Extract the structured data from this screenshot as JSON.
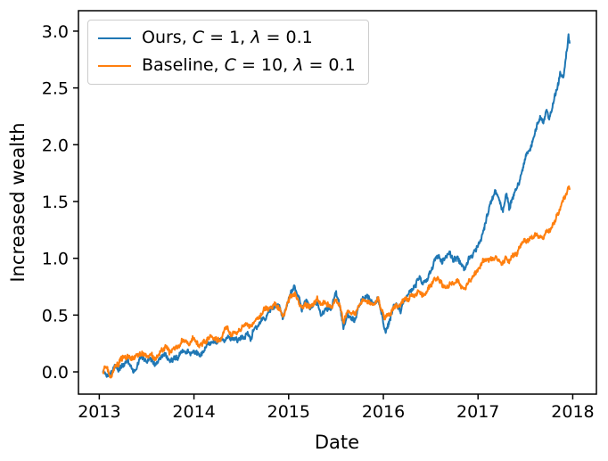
{
  "figure": {
    "background": "#ffffff",
    "text_color": "#000000",
    "spine_color": "#000000"
  },
  "chart_data": {
    "type": "line",
    "title": "",
    "xlabel": "Date",
    "ylabel": "Increased wealth",
    "grid": false,
    "xlim": [
      2012.78,
      2018.25
    ],
    "ylim": [
      -0.196,
      3.18
    ],
    "xticks": {
      "values": [
        2013,
        2014,
        2015,
        2016,
        2017,
        2018
      ],
      "labels": [
        "2013",
        "2014",
        "2015",
        "2016",
        "2017",
        "2018"
      ]
    },
    "yticks": {
      "values": [
        0.0,
        0.5,
        1.0,
        1.5,
        2.0,
        2.5,
        3.0
      ],
      "labels": [
        "0.0",
        "0.5",
        "1.0",
        "1.5",
        "2.0",
        "2.5",
        "3.0"
      ]
    },
    "legend": {
      "position": "upper left",
      "entries": [
        {
          "label": "Ours, C = 1, λ = 0.1",
          "color": "#1f77b4",
          "segments": [
            {
              "t": "Ours, "
            },
            {
              "t": "C",
              "i": true
            },
            {
              "t": " = 1, "
            },
            {
              "t": "λ",
              "i": true
            },
            {
              "t": " = 0.1"
            }
          ]
        },
        {
          "label": "Baseline, C = 10, λ = 0.1",
          "color": "#ff7f0e",
          "segments": [
            {
              "t": "Baseline, "
            },
            {
              "t": "C",
              "i": true
            },
            {
              "t": " = 10, "
            },
            {
              "t": "λ",
              "i": true
            },
            {
              "t": " = 0.1"
            }
          ]
        }
      ]
    },
    "noise": {
      "amplitude": 0.02,
      "seed": 42,
      "points_per_year": 260
    },
    "series": [
      {
        "name": "Ours, C = 1, λ = 0.1",
        "color": "#1f77b4",
        "points": [
          [
            2013.04,
            0.0
          ],
          [
            2013.08,
            -0.03
          ],
          [
            2013.12,
            0.02
          ],
          [
            2013.16,
            0.06
          ],
          [
            2013.2,
            0.02
          ],
          [
            2013.25,
            0.05
          ],
          [
            2013.3,
            0.11
          ],
          [
            2013.34,
            0.05
          ],
          [
            2013.38,
            0.01
          ],
          [
            2013.42,
            0.08
          ],
          [
            2013.46,
            0.12
          ],
          [
            2013.5,
            0.09
          ],
          [
            2013.54,
            0.16
          ],
          [
            2013.58,
            0.1
          ],
          [
            2013.62,
            0.08
          ],
          [
            2013.66,
            0.13
          ],
          [
            2013.7,
            0.15
          ],
          [
            2013.74,
            0.11
          ],
          [
            2013.78,
            0.14
          ],
          [
            2013.82,
            0.12
          ],
          [
            2013.86,
            0.16
          ],
          [
            2013.9,
            0.18
          ],
          [
            2013.95,
            0.16
          ],
          [
            2014.0,
            0.2
          ],
          [
            2014.05,
            0.13
          ],
          [
            2014.1,
            0.16
          ],
          [
            2014.15,
            0.22
          ],
          [
            2014.2,
            0.26
          ],
          [
            2014.25,
            0.21
          ],
          [
            2014.3,
            0.24
          ],
          [
            2014.35,
            0.31
          ],
          [
            2014.4,
            0.26
          ],
          [
            2014.45,
            0.28
          ],
          [
            2014.5,
            0.33
          ],
          [
            2014.55,
            0.36
          ],
          [
            2014.6,
            0.32
          ],
          [
            2014.65,
            0.4
          ],
          [
            2014.7,
            0.45
          ],
          [
            2014.75,
            0.49
          ],
          [
            2014.8,
            0.53
          ],
          [
            2014.85,
            0.58
          ],
          [
            2014.9,
            0.55
          ],
          [
            2014.94,
            0.45
          ],
          [
            2014.98,
            0.58
          ],
          [
            2015.02,
            0.68
          ],
          [
            2015.06,
            0.74
          ],
          [
            2015.1,
            0.62
          ],
          [
            2015.14,
            0.55
          ],
          [
            2015.18,
            0.62
          ],
          [
            2015.22,
            0.57
          ],
          [
            2015.26,
            0.6
          ],
          [
            2015.3,
            0.62
          ],
          [
            2015.34,
            0.52
          ],
          [
            2015.38,
            0.56
          ],
          [
            2015.42,
            0.54
          ],
          [
            2015.46,
            0.56
          ],
          [
            2015.5,
            0.71
          ],
          [
            2015.54,
            0.62
          ],
          [
            2015.58,
            0.42
          ],
          [
            2015.62,
            0.5
          ],
          [
            2015.66,
            0.46
          ],
          [
            2015.7,
            0.44
          ],
          [
            2015.74,
            0.58
          ],
          [
            2015.78,
            0.64
          ],
          [
            2015.82,
            0.67
          ],
          [
            2015.86,
            0.64
          ],
          [
            2015.9,
            0.61
          ],
          [
            2015.94,
            0.66
          ],
          [
            2015.98,
            0.52
          ],
          [
            2016.02,
            0.38
          ],
          [
            2016.06,
            0.46
          ],
          [
            2016.1,
            0.56
          ],
          [
            2016.14,
            0.6
          ],
          [
            2016.18,
            0.55
          ],
          [
            2016.22,
            0.62
          ],
          [
            2016.26,
            0.66
          ],
          [
            2016.3,
            0.71
          ],
          [
            2016.34,
            0.74
          ],
          [
            2016.38,
            0.82
          ],
          [
            2016.42,
            0.78
          ],
          [
            2016.46,
            0.84
          ],
          [
            2016.5,
            0.92
          ],
          [
            2016.54,
            1.0
          ],
          [
            2016.58,
            1.02
          ],
          [
            2016.62,
            0.99
          ],
          [
            2016.66,
            1.04
          ],
          [
            2016.7,
            1.06
          ],
          [
            2016.74,
            1.0
          ],
          [
            2016.78,
            1.03
          ],
          [
            2016.82,
            0.95
          ],
          [
            2016.86,
            0.86
          ],
          [
            2016.9,
            0.96
          ],
          [
            2016.94,
            1.04
          ],
          [
            2016.98,
            1.1
          ],
          [
            2017.02,
            1.18
          ],
          [
            2017.06,
            1.26
          ],
          [
            2017.1,
            1.36
          ],
          [
            2017.14,
            1.48
          ],
          [
            2017.18,
            1.58
          ],
          [
            2017.22,
            1.52
          ],
          [
            2017.26,
            1.44
          ],
          [
            2017.3,
            1.56
          ],
          [
            2017.33,
            1.4
          ],
          [
            2017.36,
            1.52
          ],
          [
            2017.4,
            1.64
          ],
          [
            2017.44,
            1.72
          ],
          [
            2017.48,
            1.82
          ],
          [
            2017.52,
            1.94
          ],
          [
            2017.56,
            2.02
          ],
          [
            2017.6,
            2.12
          ],
          [
            2017.63,
            2.22
          ],
          [
            2017.66,
            2.26
          ],
          [
            2017.69,
            2.18
          ],
          [
            2017.72,
            2.3
          ],
          [
            2017.75,
            2.22
          ],
          [
            2017.78,
            2.3
          ],
          [
            2017.81,
            2.42
          ],
          [
            2017.84,
            2.52
          ],
          [
            2017.87,
            2.64
          ],
          [
            2017.9,
            2.58
          ],
          [
            2017.93,
            2.78
          ],
          [
            2017.955,
            2.96
          ],
          [
            2017.97,
            2.86
          ]
        ]
      },
      {
        "name": "Baseline, C = 10, λ = 0.1",
        "color": "#ff7f0e",
        "points": [
          [
            2013.04,
            0.0
          ],
          [
            2013.08,
            0.03
          ],
          [
            2013.12,
            -0.02
          ],
          [
            2013.16,
            0.04
          ],
          [
            2013.2,
            0.07
          ],
          [
            2013.25,
            0.11
          ],
          [
            2013.3,
            0.14
          ],
          [
            2013.34,
            0.09
          ],
          [
            2013.38,
            0.11
          ],
          [
            2013.42,
            0.14
          ],
          [
            2013.46,
            0.16
          ],
          [
            2013.5,
            0.13
          ],
          [
            2013.54,
            0.17
          ],
          [
            2013.58,
            0.13
          ],
          [
            2013.62,
            0.15
          ],
          [
            2013.66,
            0.2
          ],
          [
            2013.7,
            0.24
          ],
          [
            2013.74,
            0.2
          ],
          [
            2013.78,
            0.22
          ],
          [
            2013.82,
            0.21
          ],
          [
            2013.86,
            0.24
          ],
          [
            2013.9,
            0.27
          ],
          [
            2013.95,
            0.25
          ],
          [
            2014.0,
            0.3
          ],
          [
            2014.05,
            0.22
          ],
          [
            2014.1,
            0.26
          ],
          [
            2014.15,
            0.3
          ],
          [
            2014.2,
            0.33
          ],
          [
            2014.25,
            0.29
          ],
          [
            2014.3,
            0.32
          ],
          [
            2014.35,
            0.38
          ],
          [
            2014.4,
            0.34
          ],
          [
            2014.45,
            0.36
          ],
          [
            2014.5,
            0.39
          ],
          [
            2014.55,
            0.42
          ],
          [
            2014.6,
            0.38
          ],
          [
            2014.65,
            0.45
          ],
          [
            2014.7,
            0.5
          ],
          [
            2014.75,
            0.52
          ],
          [
            2014.8,
            0.56
          ],
          [
            2014.85,
            0.61
          ],
          [
            2014.9,
            0.58
          ],
          [
            2014.94,
            0.48
          ],
          [
            2014.98,
            0.58
          ],
          [
            2015.02,
            0.64
          ],
          [
            2015.06,
            0.68
          ],
          [
            2015.1,
            0.62
          ],
          [
            2015.14,
            0.57
          ],
          [
            2015.18,
            0.61
          ],
          [
            2015.22,
            0.58
          ],
          [
            2015.26,
            0.6
          ],
          [
            2015.3,
            0.61
          ],
          [
            2015.34,
            0.55
          ],
          [
            2015.38,
            0.58
          ],
          [
            2015.42,
            0.56
          ],
          [
            2015.46,
            0.57
          ],
          [
            2015.5,
            0.63
          ],
          [
            2015.54,
            0.59
          ],
          [
            2015.58,
            0.49
          ],
          [
            2015.62,
            0.54
          ],
          [
            2015.66,
            0.51
          ],
          [
            2015.7,
            0.5
          ],
          [
            2015.74,
            0.58
          ],
          [
            2015.78,
            0.62
          ],
          [
            2015.82,
            0.64
          ],
          [
            2015.86,
            0.62
          ],
          [
            2015.9,
            0.6
          ],
          [
            2015.94,
            0.63
          ],
          [
            2015.98,
            0.54
          ],
          [
            2016.02,
            0.45
          ],
          [
            2016.06,
            0.5
          ],
          [
            2016.1,
            0.56
          ],
          [
            2016.14,
            0.59
          ],
          [
            2016.18,
            0.56
          ],
          [
            2016.22,
            0.61
          ],
          [
            2016.26,
            0.64
          ],
          [
            2016.3,
            0.67
          ],
          [
            2016.34,
            0.69
          ],
          [
            2016.38,
            0.73
          ],
          [
            2016.42,
            0.7
          ],
          [
            2016.46,
            0.73
          ],
          [
            2016.5,
            0.76
          ],
          [
            2016.54,
            0.78
          ],
          [
            2016.58,
            0.79
          ],
          [
            2016.62,
            0.77
          ],
          [
            2016.66,
            0.79
          ],
          [
            2016.7,
            0.81
          ],
          [
            2016.74,
            0.79
          ],
          [
            2016.78,
            0.8
          ],
          [
            2016.82,
            0.77
          ],
          [
            2016.86,
            0.74
          ],
          [
            2016.9,
            0.79
          ],
          [
            2016.94,
            0.83
          ],
          [
            2016.98,
            0.87
          ],
          [
            2017.02,
            0.92
          ],
          [
            2017.06,
            0.97
          ],
          [
            2017.1,
            1.0
          ],
          [
            2017.14,
            0.97
          ],
          [
            2017.18,
            1.0
          ],
          [
            2017.22,
            0.97
          ],
          [
            2017.26,
            0.95
          ],
          [
            2017.3,
            0.98
          ],
          [
            2017.33,
            0.96
          ],
          [
            2017.36,
            1.0
          ],
          [
            2017.4,
            1.04
          ],
          [
            2017.44,
            1.08
          ],
          [
            2017.48,
            1.12
          ],
          [
            2017.52,
            1.15
          ],
          [
            2017.56,
            1.17
          ],
          [
            2017.6,
            1.2
          ],
          [
            2017.63,
            1.21
          ],
          [
            2017.66,
            1.19
          ],
          [
            2017.69,
            1.18
          ],
          [
            2017.72,
            1.22
          ],
          [
            2017.75,
            1.24
          ],
          [
            2017.78,
            1.28
          ],
          [
            2017.81,
            1.32
          ],
          [
            2017.84,
            1.38
          ],
          [
            2017.87,
            1.44
          ],
          [
            2017.9,
            1.49
          ],
          [
            2017.93,
            1.54
          ],
          [
            2017.955,
            1.59
          ],
          [
            2017.97,
            1.57
          ]
        ]
      }
    ]
  }
}
